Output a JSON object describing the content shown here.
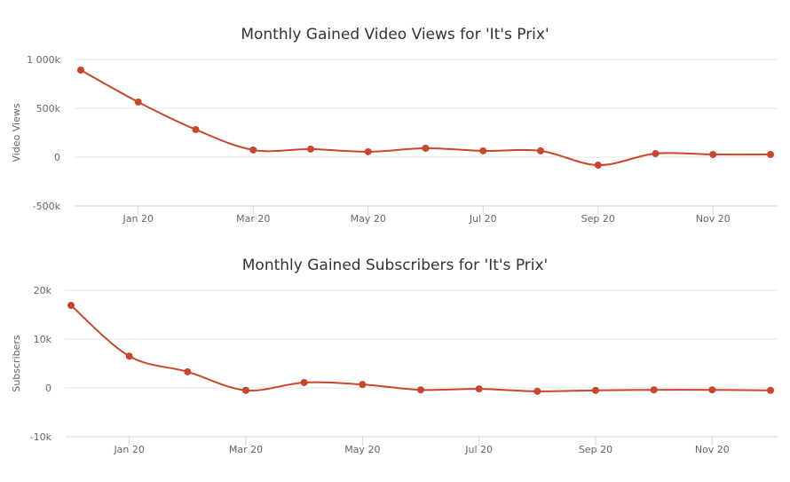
{
  "chart_data": [
    {
      "type": "line",
      "title": "Monthly Gained Video Views for 'It's Prix'",
      "xlabel": "",
      "ylabel": "Video Views",
      "x": [
        "Dec 19",
        "Jan 20",
        "Feb 20",
        "Mar 20",
        "Apr 20",
        "May 20",
        "Jun 20",
        "Jul 20",
        "Aug 20",
        "Sep 20",
        "Oct 20",
        "Nov 20",
        "Dec 20"
      ],
      "x_tick_labels": [
        "Jan 20",
        "Mar 20",
        "May 20",
        "Jul 20",
        "Sep 20",
        "Nov 20"
      ],
      "y_tick_labels": [
        "1 000k",
        "500k",
        "0",
        "-500k"
      ],
      "y_ticks": [
        1000000,
        500000,
        0,
        -500000
      ],
      "ylim": [
        -500000,
        1000000
      ],
      "grid": true,
      "color": "#c9462c",
      "series": [
        {
          "name": "Video Views",
          "values": [
            891000,
            564000,
            282000,
            73000,
            82000,
            55000,
            91000,
            64000,
            64000,
            -82000,
            36000,
            27000,
            27000
          ]
        }
      ]
    },
    {
      "type": "line",
      "title": "Monthly Gained Subscribers for 'It's Prix'",
      "xlabel": "",
      "ylabel": "Subscribers",
      "x": [
        "Dec 19",
        "Jan 20",
        "Feb 20",
        "Mar 20",
        "Apr 20",
        "May 20",
        "Jun 20",
        "Jul 20",
        "Aug 20",
        "Sep 20",
        "Oct 20",
        "Nov 20",
        "Dec 20"
      ],
      "x_tick_labels": [
        "Jan 20",
        "Mar 20",
        "May 20",
        "Jul 20",
        "Sep 20",
        "Nov 20"
      ],
      "y_tick_labels": [
        "20k",
        "10k",
        "0",
        "-10k"
      ],
      "y_ticks": [
        20000,
        10000,
        0,
        -10000
      ],
      "ylim": [
        -10000,
        20000
      ],
      "grid": true,
      "color": "#c9462c",
      "series": [
        {
          "name": "Subscribers",
          "values": [
            16900,
            6500,
            3300,
            -500,
            1100,
            700,
            -400,
            -200,
            -700,
            -500,
            -400,
            -400,
            -500
          ]
        }
      ]
    }
  ]
}
